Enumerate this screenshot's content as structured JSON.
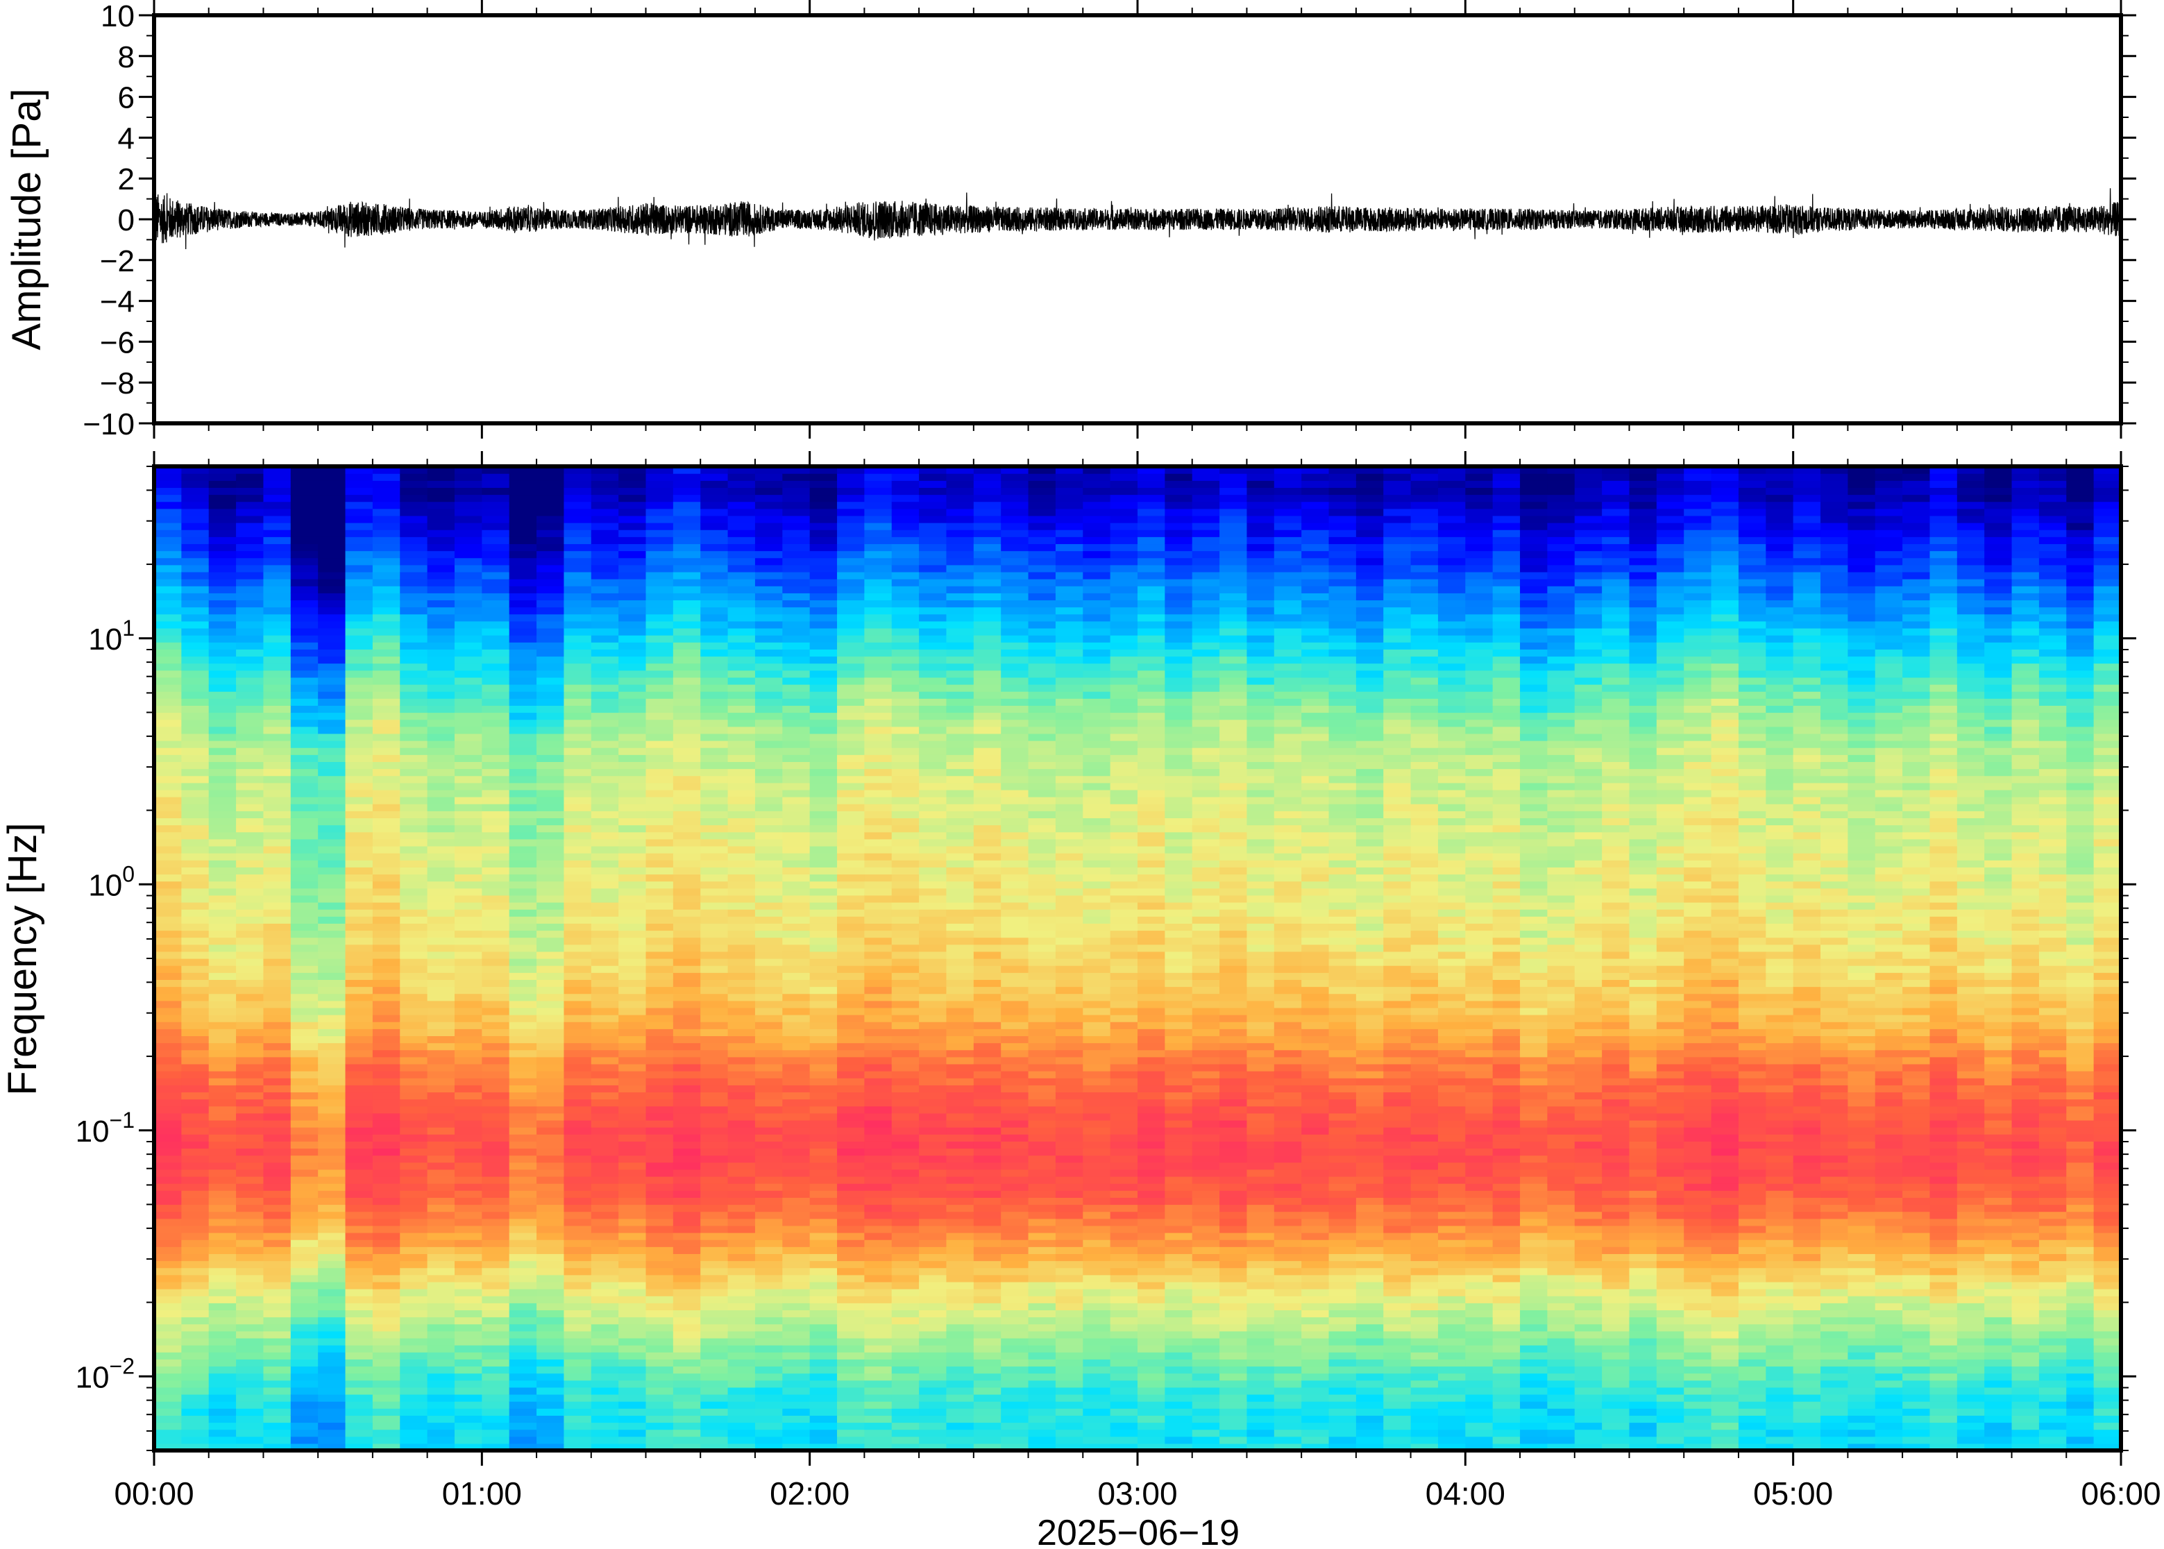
{
  "chart_data": [
    {
      "type": "line",
      "ylabel": "Amplitude [Pa]",
      "ylim": [
        -10,
        10
      ],
      "yticks": [
        10,
        8,
        6,
        4,
        2,
        0,
        -2,
        -4,
        -6,
        -8,
        -10
      ],
      "ytick_labels": [
        "10",
        "8",
        "6",
        "4",
        "2",
        "0",
        "−2",
        "−4",
        "−6",
        "−8",
        "−10"
      ],
      "xlim": [
        "00:00",
        "06:00"
      ],
      "series": [
        {
          "x_hours": [
            0.0,
            0.1,
            0.2,
            0.3,
            0.4,
            0.5,
            0.6,
            0.7,
            0.8,
            0.9,
            1.0,
            1.1,
            1.2,
            1.3,
            1.4,
            1.5,
            1.6,
            1.7,
            1.8,
            1.9,
            2.0,
            2.1,
            2.2,
            2.3,
            2.4,
            2.5,
            2.6,
            2.7,
            2.8,
            2.9,
            3.0,
            3.1,
            3.2,
            3.3,
            3.4,
            3.5,
            3.6,
            3.7,
            3.8,
            3.9,
            4.0,
            4.1,
            4.2,
            4.3,
            4.4,
            4.5,
            4.6,
            4.7,
            4.8,
            4.9,
            5.0,
            5.1,
            5.2,
            5.3,
            5.4,
            5.5,
            5.6,
            5.7,
            5.8,
            5.9,
            6.0
          ],
          "envelope_pa": [
            1.8,
            1.1,
            0.7,
            0.5,
            0.4,
            0.5,
            1.2,
            1.0,
            0.7,
            0.6,
            0.5,
            0.9,
            0.7,
            0.6,
            0.8,
            1.1,
            0.9,
            1.0,
            1.2,
            0.7,
            0.6,
            0.9,
            1.3,
            1.2,
            1.0,
            0.9,
            0.8,
            0.8,
            0.7,
            0.7,
            0.7,
            0.7,
            0.7,
            0.7,
            0.7,
            0.8,
            0.9,
            0.8,
            0.8,
            0.7,
            0.7,
            0.7,
            0.7,
            0.6,
            0.6,
            0.7,
            0.8,
            0.9,
            0.9,
            0.9,
            1.0,
            0.8,
            0.7,
            0.6,
            0.6,
            0.7,
            0.8,
            0.8,
            0.9,
            0.8,
            1.2
          ]
        }
      ]
    },
    {
      "type": "heatmap",
      "ylabel": "Frequency [Hz]",
      "yscale": "log",
      "ylim_hz": [
        0.005,
        50
      ],
      "yticks_hz": [
        0.01,
        0.1,
        1,
        10
      ],
      "ytick_labels": [
        {
          "base": "10",
          "exp": "−2"
        },
        {
          "base": "10",
          "exp": "−1"
        },
        {
          "base": "10",
          "exp": "0"
        },
        {
          "base": "10",
          "exp": "1"
        }
      ],
      "xlabel": "2025−06−19",
      "x_ticks": [
        "00:00",
        "01:00",
        "02:00",
        "03:00",
        "04:00",
        "05:00",
        "06:00"
      ],
      "colormap": "jet-like (blue low → red high power)",
      "colormap_stops": [
        "#00007f",
        "#0000ff",
        "#0080ff",
        "#00e0ff",
        "#80f0a0",
        "#f0f080",
        "#ffb040",
        "#ff6040",
        "#ff3060"
      ],
      "time_columns": 72,
      "frequency_rows_hz": [
        0.006,
        0.008,
        0.01,
        0.013,
        0.017,
        0.022,
        0.03,
        0.04,
        0.05,
        0.065,
        0.085,
        0.11,
        0.15,
        0.2,
        0.28,
        0.4,
        0.6,
        0.9,
        1.4,
        2.2,
        3.5,
        5.5,
        8.5,
        13,
        20,
        30,
        40
      ],
      "row_profile_relative_power": [
        0.38,
        0.4,
        0.44,
        0.5,
        0.56,
        0.62,
        0.72,
        0.8,
        0.86,
        0.9,
        0.92,
        0.9,
        0.86,
        0.8,
        0.72,
        0.68,
        0.64,
        0.62,
        0.6,
        0.58,
        0.56,
        0.48,
        0.38,
        0.28,
        0.18,
        0.1,
        0.04
      ],
      "column_modulation": [
        0.06,
        0.02,
        -0.02,
        0.0,
        0.02,
        -0.1,
        -0.12,
        0.04,
        0.06,
        0.0,
        -0.02,
        0.0,
        0.0,
        -0.08,
        -0.06,
        0.02,
        0.0,
        0.0,
        0.04,
        0.06,
        0.02,
        0.02,
        0.0,
        0.0,
        -0.02,
        0.04,
        0.06,
        0.04,
        0.02,
        0.02,
        0.04,
        0.02,
        0.0,
        0.02,
        0.0,
        0.02,
        0.04,
        0.0,
        0.02,
        0.04,
        0.0,
        0.02,
        0.02,
        0.0,
        -0.02,
        0.02,
        0.02,
        0.0,
        0.0,
        0.02,
        -0.04,
        -0.02,
        0.0,
        0.02,
        -0.02,
        0.02,
        0.04,
        0.06,
        0.02,
        0.0,
        0.02,
        0.0,
        -0.02,
        0.0,
        0.0,
        0.04,
        0.0,
        -0.02,
        0.02,
        0.0,
        -0.04,
        0.02
      ]
    }
  ]
}
